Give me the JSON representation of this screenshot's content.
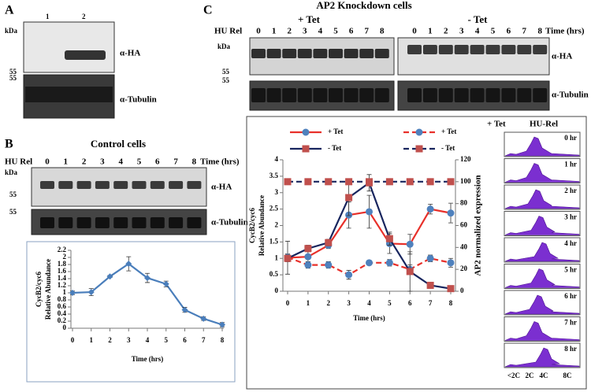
{
  "panels": {
    "A": {
      "letter": "A",
      "lanes": [
        "1",
        "2"
      ],
      "kda": "kDa",
      "markers": [
        "55",
        "55"
      ],
      "antibodies": [
        "α-HA",
        "α-Tubulin"
      ]
    },
    "B": {
      "letter": "B",
      "title": "Control cells",
      "hu_rel": "HU Rel",
      "lanes": [
        "0",
        "1",
        "2",
        "3",
        "4",
        "5",
        "6",
        "7",
        "8"
      ],
      "time": "Time (hrs)",
      "kda": "kDa",
      "markers": [
        "55",
        "55"
      ],
      "antibodies": [
        "α-HA",
        "α-Tubulin"
      ]
    },
    "C": {
      "letter": "C",
      "title": "AP2 Knockdown cells",
      "hu_rel": "HU Rel",
      "time": "Time (hrs)",
      "kda": "kDa",
      "markers": [
        "55",
        "55"
      ],
      "antibodies": [
        "α-HA",
        "α-Tubulin"
      ],
      "conditions": [
        {
          "label": "+ Tet",
          "lanes": [
            "0",
            "1",
            "2",
            "3",
            "4",
            "5",
            "6",
            "7",
            "8"
          ]
        },
        {
          "label": "- Tet",
          "lanes": [
            "0",
            "1",
            "2",
            "3",
            "4",
            "5",
            "6",
            "7",
            "8"
          ]
        }
      ],
      "flow": {
        "header": [
          "+ Tet",
          "HU-Rel"
        ],
        "panels": [
          "0 hr",
          "1 hr",
          "2 hr",
          "3 hr",
          "4 hr",
          "5 hr",
          "6 hr",
          "7 hr",
          "8 hr"
        ],
        "dna_labels": [
          "<2C",
          "2C",
          "4C",
          "8C"
        ]
      }
    }
  },
  "chart_data": [
    {
      "type": "line",
      "categories": [
        "0",
        "1",
        "2",
        "3",
        "4",
        "5",
        "6",
        "7",
        "8"
      ],
      "values": [
        1.0,
        1.02,
        1.46,
        1.82,
        1.42,
        1.25,
        0.52,
        0.27,
        0.1
      ],
      "errors": [
        0.05,
        0.1,
        0.03,
        0.2,
        0.13,
        0.08,
        0.07,
        0.05,
        0.06
      ],
      "color": "#4a7ebb",
      "marker": "diamond",
      "ylim": [
        0,
        2.2
      ],
      "yticks": [
        0,
        0.2,
        0.4,
        0.6,
        0.8,
        1,
        1.2,
        1.4,
        1.6,
        1.8,
        2,
        2.2
      ],
      "y_label": [
        "CycB2/cyc6",
        "Relative Abundance"
      ],
      "x_label": "Time (hrs)"
    },
    {
      "type": "line",
      "categories": [
        "0",
        "1",
        "2",
        "3",
        "4",
        "5",
        "6",
        "7",
        "8"
      ],
      "ylim": [
        0,
        4
      ],
      "yticks": [
        0,
        0.5,
        1,
        1.5,
        2,
        2.5,
        3,
        3.5,
        4
      ],
      "y2lim": [
        0,
        120
      ],
      "y2ticks": [
        0,
        20,
        40,
        60,
        80,
        100,
        120
      ],
      "y_label": [
        "CycB2/cyc6",
        "Relative Abundance"
      ],
      "y2_label": "AP2 normalized expression",
      "x_label": "Time (hrs)",
      "series": [
        {
          "name": "+ Tet",
          "color": "#e8302a",
          "marker_color": "#4f81bd",
          "marker": "circle",
          "line_style": "solid",
          "values": [
            1.02,
            1.05,
            1.4,
            2.32,
            2.42,
            1.45,
            1.43,
            2.5,
            2.38
          ],
          "errors": [
            0.5,
            0.2,
            0.1,
            0.4,
            0.5,
            0.3,
            0.3,
            0.15,
            0.3
          ]
        },
        {
          "name": "+ Tet",
          "color": "#e8302a",
          "marker_color": "#4f81bd",
          "marker": "circle",
          "line_style": "dashed",
          "axis": "y2",
          "values": [
            31,
            24,
            24,
            15,
            26,
            26,
            20,
            30,
            26
          ],
          "errors": [
            3,
            3,
            3,
            4,
            2,
            3,
            4,
            3,
            4
          ]
        },
        {
          "name": "- Tet",
          "color": "#17255e",
          "marker_color": "#c0504d",
          "marker": "square",
          "line_style": "solid",
          "values": [
            1.0,
            1.3,
            1.48,
            2.85,
            3.3,
            1.6,
            0.6,
            0.18,
            0.08
          ],
          "errors": [
            0.1,
            0.1,
            0.1,
            0.55,
            0.25,
            0.2,
            0.6,
            0.05,
            0.03
          ]
        },
        {
          "name": "- Tet",
          "color": "#17255e",
          "marker_color": "#c0504d",
          "marker": "square",
          "line_style": "dashed",
          "axis": "y2",
          "values": [
            100,
            100,
            100,
            100,
            100,
            100,
            100,
            100,
            100
          ],
          "errors": [
            0,
            0,
            0,
            0,
            0,
            0,
            0,
            0,
            0
          ]
        }
      ]
    }
  ]
}
